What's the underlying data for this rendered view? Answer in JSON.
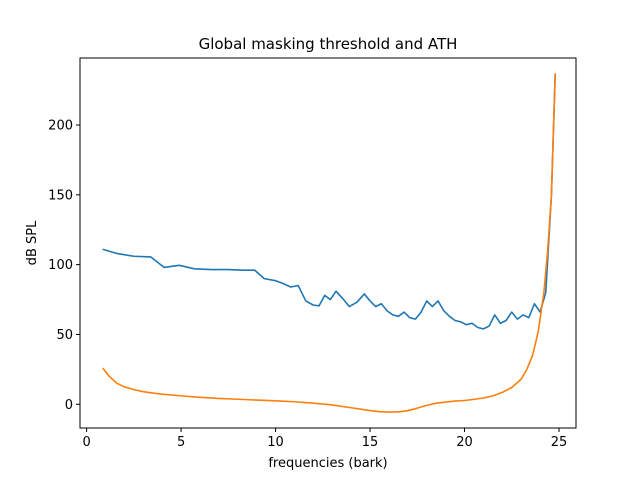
{
  "chart_data": {
    "type": "line",
    "title": "Global masking threshold and ATH",
    "xlabel": "frequencies (bark)",
    "ylabel": "dB SPL",
    "xlim": [
      -0.35,
      25.9
    ],
    "ylim": [
      -17,
      248
    ],
    "xticks": [
      0,
      5,
      10,
      15,
      20,
      25
    ],
    "yticks": [
      0,
      50,
      100,
      150,
      200
    ],
    "grid": false,
    "series": [
      {
        "color": "#1f77b4",
        "x": [
          0.85,
          1.6,
          2.5,
          3.4,
          4.1,
          4.9,
          5.7,
          6.6,
          7.5,
          8.3,
          8.9,
          9.4,
          10.0,
          10.4,
          10.8,
          11.2,
          11.6,
          12.0,
          12.3,
          12.6,
          12.9,
          13.2,
          13.6,
          13.9,
          14.3,
          14.7,
          15.0,
          15.3,
          15.6,
          15.9,
          16.2,
          16.5,
          16.8,
          17.1,
          17.4,
          17.7,
          18.0,
          18.3,
          18.6,
          18.9,
          19.2,
          19.5,
          19.8,
          20.1,
          20.4,
          20.7,
          21.0,
          21.3,
          21.6,
          21.9,
          22.2,
          22.5,
          22.8,
          23.1,
          23.4,
          23.7,
          24.0,
          24.3,
          24.6,
          24.8
        ],
        "y": [
          111,
          108,
          106,
          105.5,
          98,
          99.5,
          97,
          96.5,
          96.5,
          96,
          96,
          90,
          88.5,
          86.5,
          84,
          85,
          74,
          71,
          70.5,
          78,
          75,
          81,
          75,
          70,
          73,
          79,
          74,
          70,
          72,
          67,
          64,
          63,
          66,
          62,
          61,
          66,
          74,
          70,
          74,
          67,
          63,
          60,
          59,
          57,
          58,
          55,
          54,
          56,
          64,
          58,
          60,
          66,
          61,
          64,
          62,
          72,
          66,
          80,
          150,
          237
        ]
      },
      {
        "color": "#ff7f0e",
        "x": [
          0.85,
          1.2,
          1.6,
          2.0,
          2.5,
          3.0,
          3.5,
          4.0,
          5.0,
          6.0,
          7.0,
          8.0,
          9.0,
          10.0,
          11.0,
          12.0,
          13.0,
          14.0,
          15.0,
          15.5,
          16.0,
          16.5,
          17.0,
          17.5,
          18.0,
          18.5,
          19.0,
          19.5,
          20.0,
          20.5,
          21.0,
          21.5,
          22.0,
          22.5,
          23.0,
          23.3,
          23.6,
          23.9,
          24.2,
          24.4,
          24.6,
          24.8
        ],
        "y": [
          26,
          20,
          15,
          12.5,
          10.5,
          9,
          8,
          7.2,
          6,
          5,
          4.2,
          3.6,
          3,
          2.5,
          1.8,
          0.8,
          -0.5,
          -2.5,
          -4.5,
          -5.3,
          -5.6,
          -5.4,
          -4.6,
          -2.8,
          -0.8,
          0.8,
          1.6,
          2.3,
          2.7,
          3.5,
          4.5,
          6,
          8.5,
          12,
          18,
          25,
          35,
          52,
          80,
          110,
          150,
          237
        ]
      }
    ]
  }
}
